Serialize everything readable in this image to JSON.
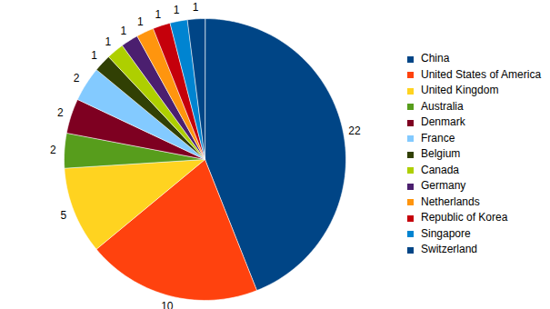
{
  "chart_data": {
    "type": "pie",
    "categories": [
      "China",
      "United States of America",
      "United Kingdom",
      "Australia",
      "Denmark",
      "France",
      "Belgium",
      "Canada",
      "Germany",
      "Netherlands",
      "Republic of Korea",
      "Singapore",
      "Switzerland"
    ],
    "values": [
      22,
      10,
      5,
      2,
      2,
      2,
      1,
      1,
      1,
      1,
      1,
      1,
      1
    ],
    "colors": [
      "#004586",
      "#ff420e",
      "#ffd320",
      "#579d1c",
      "#7e0021",
      "#83caff",
      "#314004",
      "#aecf00",
      "#4b1f6f",
      "#ff950e",
      "#c5000b",
      "#0084d1",
      "#004586"
    ],
    "data_labels": true,
    "legend": "right"
  }
}
